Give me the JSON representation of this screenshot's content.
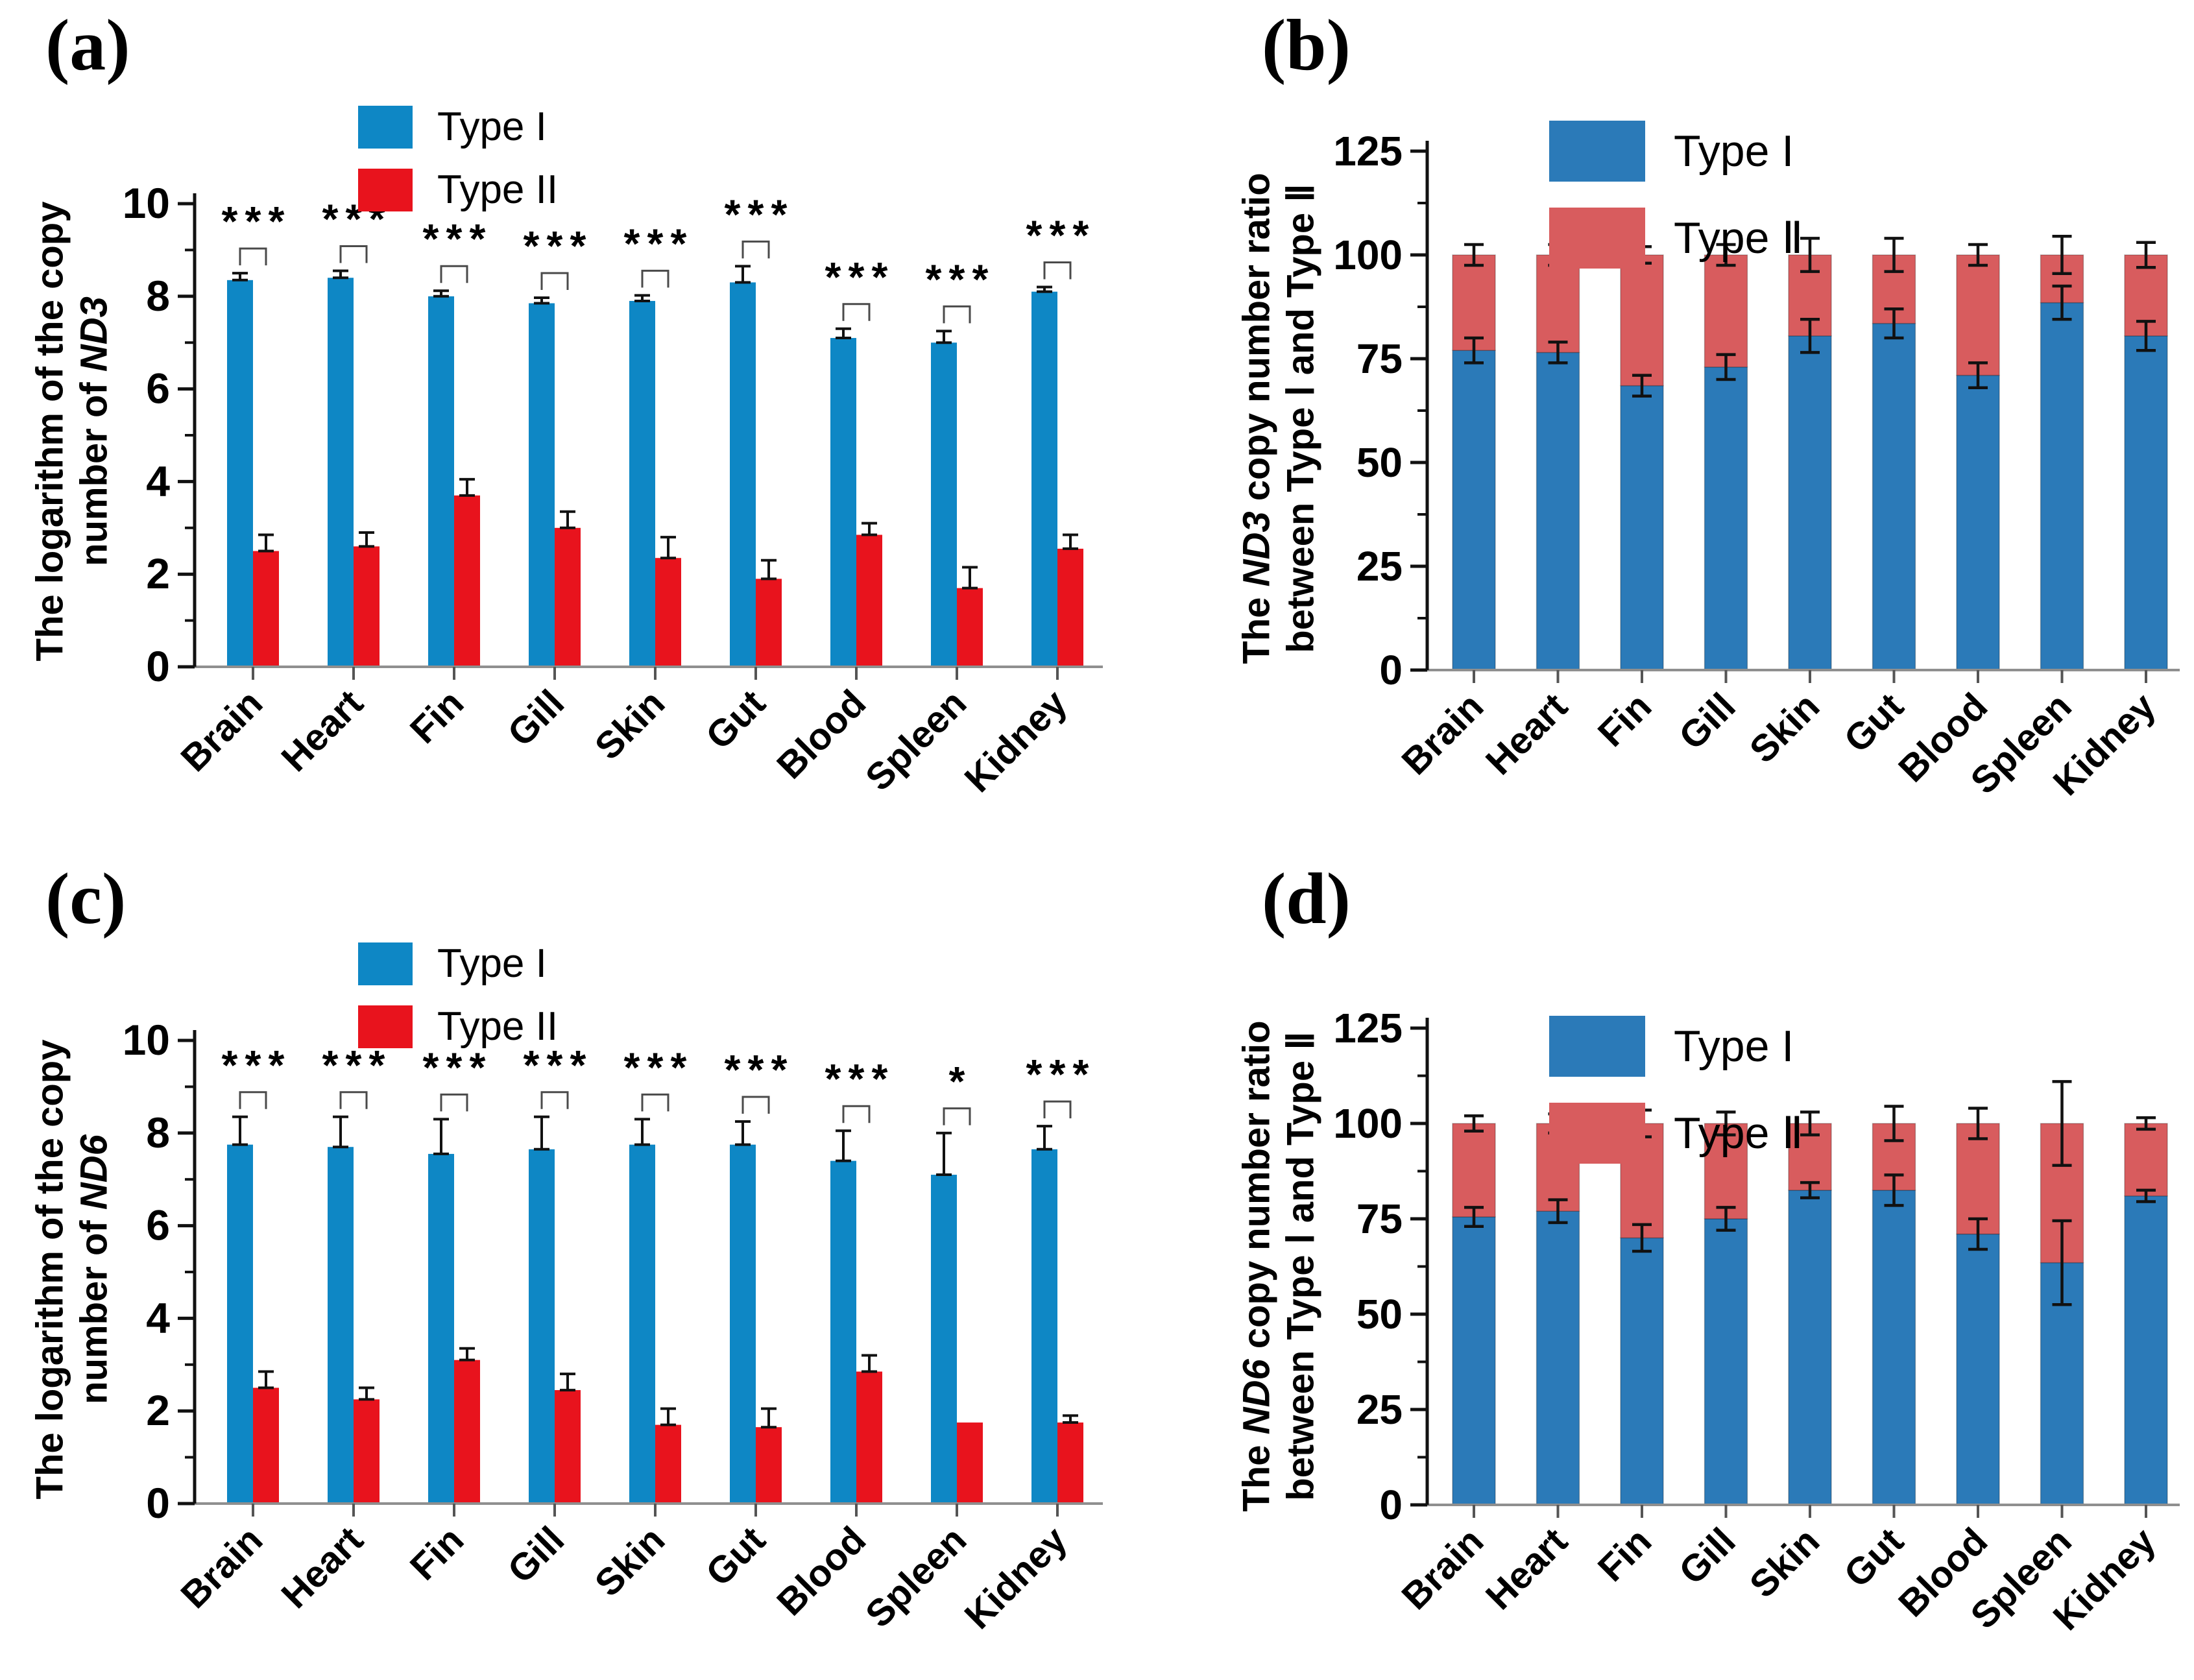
{
  "panels": {
    "a": {
      "letter": "(a)",
      "ylabel": {
        "line1": "The logarithm of the copy",
        "line2_prefix": "number of ",
        "gene": "ND3"
      }
    },
    "b": {
      "letter": "(b)",
      "ylabel": {
        "line1_prefix": "The ",
        "gene": "ND3",
        "line1_suffix": " copy number ratio",
        "line2": "between Type Ⅰ and Type Ⅱ"
      }
    },
    "c": {
      "letter": "(c)",
      "ylabel": {
        "line1": "The logarithm of the copy",
        "line2_prefix": "number of ",
        "gene": "ND6"
      }
    },
    "d": {
      "letter": "(d)",
      "ylabel": {
        "line1_prefix": "The ",
        "gene": "ND6",
        "line1_suffix": " copy number ratio",
        "line2": "between Type Ⅰ and Type Ⅱ"
      }
    }
  },
  "chart_data": [
    {
      "id": "chart-a",
      "type": "bar",
      "subtype": "grouped",
      "ylabel": "The logarithm of the copy number of ND3",
      "categories": [
        "Brain",
        "Heart",
        "Fin",
        "Gill",
        "Skin",
        "Gut",
        "Blood",
        "Spleen",
        "Kidney"
      ],
      "series": [
        {
          "name": "Type I",
          "color": "#0e87c5",
          "values": [
            8.35,
            8.4,
            8.0,
            7.85,
            7.9,
            8.3,
            7.1,
            7.0,
            8.1
          ],
          "errors": [
            0.15,
            0.15,
            0.12,
            0.12,
            0.12,
            0.35,
            0.2,
            0.25,
            0.1
          ]
        },
        {
          "name": "Type II",
          "color": "#e8131d",
          "values": [
            2.5,
            2.6,
            3.7,
            3.0,
            2.35,
            1.9,
            2.85,
            1.7,
            2.55
          ],
          "errors": [
            0.35,
            0.3,
            0.35,
            0.35,
            0.45,
            0.4,
            0.25,
            0.45,
            0.3
          ]
        }
      ],
      "significance": [
        "***",
        "***",
        "***",
        "***",
        "***",
        "***",
        "***",
        "***",
        "***"
      ],
      "ylim": [
        0,
        10
      ],
      "yticks": [
        0,
        2,
        4,
        6,
        8,
        10
      ],
      "minor_step": 1,
      "grid": false,
      "legend_position": "top-left"
    },
    {
      "id": "chart-b",
      "type": "bar",
      "subtype": "stacked",
      "ylabel": "The ND3 copy number ratio between Type Ⅰ and Type Ⅱ",
      "categories": [
        "Brain",
        "Heart",
        "Fin",
        "Gill",
        "Skin",
        "Gut",
        "Blood",
        "Spleen",
        "Kidney"
      ],
      "series": [
        {
          "name": "Type I",
          "color": "#2b7ab8",
          "values": [
            77,
            76.5,
            68.5,
            73,
            80.5,
            83.5,
            71,
            88.5,
            80.5
          ]
        },
        {
          "name": "Type Ⅱ",
          "color": "#d85c5e",
          "values": [
            23,
            23.5,
            31.5,
            27,
            19.5,
            16.5,
            29,
            11.5,
            19.5
          ]
        }
      ],
      "boundary_errors": [
        3,
        2.5,
        2.5,
        3,
        4,
        3.5,
        3,
        4,
        3.5
      ],
      "total": 100,
      "total_errors": [
        2.5,
        2.5,
        2,
        2.5,
        4,
        4,
        2.5,
        4.5,
        3
      ],
      "ylim": [
        0,
        125
      ],
      "yticks": [
        0,
        25,
        50,
        75,
        100,
        125
      ],
      "minor_step": 12.5,
      "grid": false,
      "legend_position": "top-left"
    },
    {
      "id": "chart-c",
      "type": "bar",
      "subtype": "grouped",
      "ylabel": "The logarithm of the copy number of ND6",
      "categories": [
        "Brain",
        "Heart",
        "Fin",
        "Gill",
        "Skin",
        "Gut",
        "Blood",
        "Spleen",
        "Kidney"
      ],
      "series": [
        {
          "name": "Type I",
          "color": "#0e87c5",
          "values": [
            7.75,
            7.7,
            7.55,
            7.65,
            7.75,
            7.75,
            7.4,
            7.1,
            7.65
          ],
          "errors": [
            0.6,
            0.65,
            0.75,
            0.7,
            0.55,
            0.5,
            0.65,
            0.9,
            0.5
          ]
        },
        {
          "name": "Type II",
          "color": "#e8131d",
          "values": [
            2.5,
            2.25,
            3.1,
            2.45,
            1.7,
            1.65,
            2.85,
            1.75,
            1.75
          ],
          "errors": [
            0.35,
            0.25,
            0.25,
            0.35,
            0.35,
            0.4,
            0.35,
            0.05,
            0.15
          ]
        }
      ],
      "significance": [
        "***",
        "***",
        "***",
        "***",
        "***",
        "***",
        "***",
        "*",
        "***"
      ],
      "ylim": [
        0,
        10
      ],
      "yticks": [
        0,
        2,
        4,
        6,
        8,
        10
      ],
      "minor_step": 1,
      "grid": false,
      "legend_position": "top-left"
    },
    {
      "id": "chart-d",
      "type": "bar",
      "subtype": "stacked",
      "ylabel": "The ND6 copy number ratio between Type Ⅰ and Type Ⅱ",
      "categories": [
        "Brain",
        "Heart",
        "Fin",
        "Gill",
        "Skin",
        "Gut",
        "Blood",
        "Spleen",
        "Kidney"
      ],
      "series": [
        {
          "name": "Type I",
          "color": "#2b7ab8",
          "values": [
            75.5,
            77,
            70,
            75,
            82.5,
            82.5,
            71,
            63.5,
            81
          ]
        },
        {
          "name": "Type Ⅱ",
          "color": "#d85c5e",
          "values": [
            24.5,
            23,
            30,
            25,
            17.5,
            17.5,
            29,
            36.5,
            19
          ]
        }
      ],
      "boundary_errors": [
        2.5,
        3,
        3.5,
        3,
        2,
        4,
        4,
        11,
        1.5
      ],
      "total": 100,
      "total_errors": [
        2,
        2.5,
        3.5,
        3,
        3,
        4.5,
        4,
        11,
        1.5
      ],
      "ylim": [
        0,
        125
      ],
      "yticks": [
        0,
        25,
        50,
        75,
        100,
        125
      ],
      "minor_step": 12.5,
      "grid": false,
      "legend_position": "top-left"
    }
  ]
}
